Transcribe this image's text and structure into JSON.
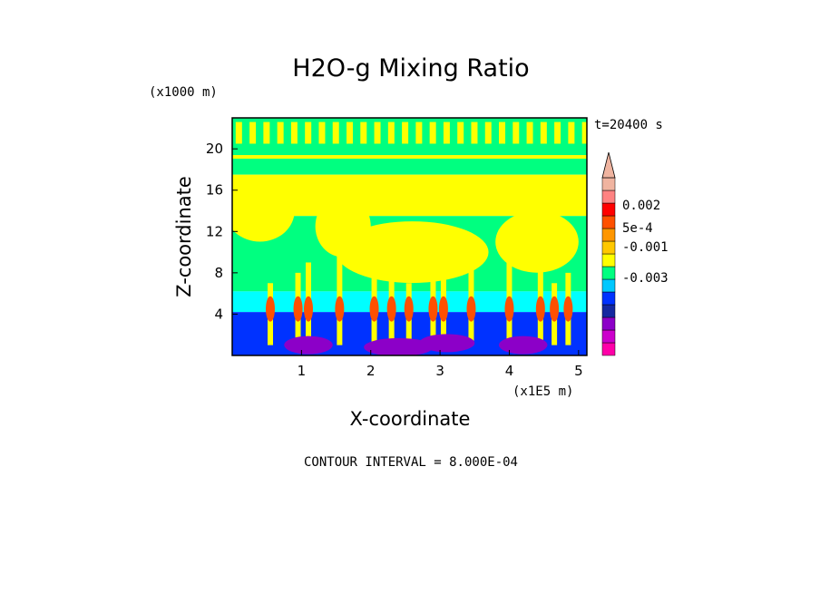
{
  "chart_data": {
    "type": "heatmap",
    "title": "H2O-g Mixing Ratio",
    "xlabel": "X-coordinate",
    "ylabel": "Z-coordinate",
    "x_scale_label": "(x1E5 m)",
    "y_scale_label": "(x1000 m)",
    "time_label": "t=20400 s",
    "footer": "CONTOUR INTERVAL = 8.000E-04",
    "xlim": [
      0.0,
      5.12
    ],
    "ylim": [
      0.0,
      23.0
    ],
    "x_ticks": [
      1,
      2,
      3,
      4,
      5
    ],
    "y_ticks": [
      4,
      8,
      12,
      16,
      20
    ],
    "colorbar": {
      "colors": [
        "#ff00a8",
        "#cc00cc",
        "#8c00c8",
        "#1428a0",
        "#0032ff",
        "#00c8ff",
        "#00ff80",
        "#ffff00",
        "#ffc800",
        "#ff9600",
        "#ff5000",
        "#ff0000",
        "#ff8282",
        "#f0b4a0"
      ],
      "tick_labels": [
        "0.002",
        "5e-4",
        "-0.001",
        "-0.003"
      ],
      "extend": "max"
    },
    "color_levels": {
      "upper_stratosphere": "#00ff80",
      "anvil_layer": "#ffff00",
      "mid_troposphere": "#00ff80",
      "moist_layer": "#00ffff",
      "boundary_layer": "#0032ff",
      "surface_minimum": "#8c00c8",
      "convective_core": "#ff5000"
    }
  }
}
